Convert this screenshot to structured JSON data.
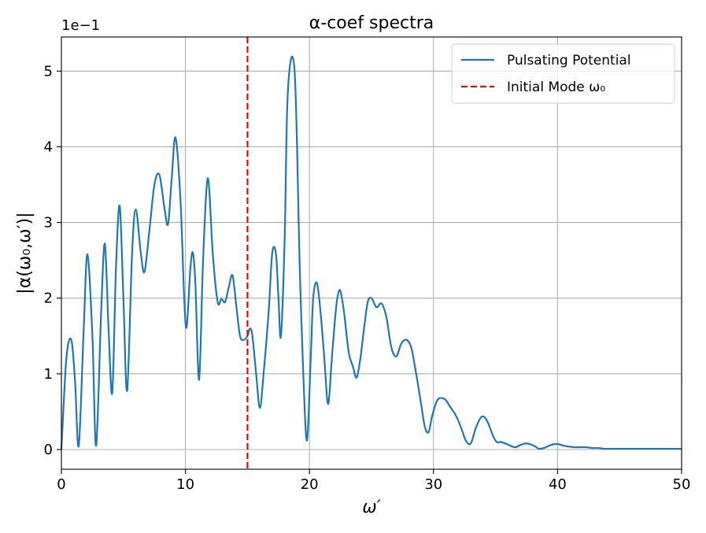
{
  "chart_data": {
    "type": "line",
    "title": "α-coef spectra",
    "xlabel": "ω′",
    "ylabel": "|α(ω₀,ω′)|",
    "offset_text": "1e−1",
    "xlim": [
      0,
      50
    ],
    "ylim": [
      -0.26,
      5.45
    ],
    "xticks": [
      0,
      10,
      20,
      30,
      40,
      50
    ],
    "yticks": [
      0,
      1,
      2,
      3,
      4,
      5
    ],
    "grid": true,
    "legend_position": "top-right",
    "series": [
      {
        "name": "Pulsating Potential",
        "color": "#1f77b4",
        "style": "solid",
        "x": [
          0,
          0.4,
          0.8,
          1.1,
          1.4,
          1.8,
          2.1,
          2.5,
          2.8,
          3.2,
          3.5,
          3.8,
          4.1,
          4.4,
          4.7,
          5.0,
          5.3,
          5.7,
          6.0,
          6.4,
          6.7,
          7.1,
          7.5,
          7.9,
          8.3,
          8.6,
          8.9,
          9.2,
          9.6,
          9.9,
          10.1,
          10.4,
          10.6,
          10.8,
          11.1,
          11.4,
          11.7,
          11.9,
          12.2,
          12.6,
          12.9,
          13.2,
          13.5,
          13.8,
          14.1,
          14.4,
          14.7,
          15.0,
          15.2,
          15.4,
          15.7,
          16.0,
          16.3,
          16.7,
          17.0,
          17.3,
          17.5,
          17.7,
          18.0,
          18.2,
          18.5,
          18.8,
          19.0,
          19.2,
          19.5,
          19.8,
          20.1,
          20.3,
          20.6,
          20.9,
          21.2,
          21.5,
          21.8,
          22.1,
          22.3,
          22.5,
          22.8,
          23.0,
          23.2,
          23.5,
          23.8,
          24.1,
          24.4,
          24.7,
          25.0,
          25.4,
          25.8,
          26.2,
          26.6,
          27.0,
          27.4,
          27.8,
          28.2,
          28.6,
          29.0,
          29.3,
          29.6,
          29.9,
          30.3,
          30.7,
          31.0,
          31.4,
          31.8,
          32.2,
          32.6,
          33.0,
          33.4,
          33.8,
          34.1,
          34.4,
          34.8,
          35.1,
          35.4,
          35.8,
          36.2,
          36.6,
          37.0,
          37.4,
          37.8,
          38.2,
          38.5,
          38.9,
          39.3,
          39.7,
          40.1,
          40.5,
          40.9,
          41.4,
          41.8,
          42.3,
          42.8,
          43.3,
          43.8,
          44.3,
          44.8,
          45.5,
          46.2,
          47.0,
          48.0,
          49.0,
          50.0
        ],
        "y": [
          0,
          1.2,
          1.45,
          0.9,
          0.05,
          1.6,
          2.58,
          1.5,
          0.05,
          1.8,
          2.72,
          1.6,
          0.75,
          2.4,
          3.22,
          2.0,
          0.78,
          2.6,
          3.17,
          2.6,
          2.35,
          2.9,
          3.5,
          3.63,
          3.2,
          2.98,
          3.6,
          4.12,
          3.3,
          2.0,
          1.62,
          2.4,
          2.6,
          2.2,
          0.92,
          2.4,
          3.45,
          3.48,
          2.6,
          1.95,
          1.99,
          1.95,
          2.15,
          2.3,
          1.9,
          1.5,
          1.45,
          1.5,
          1.6,
          1.5,
          1.0,
          0.55,
          1.0,
          1.8,
          2.6,
          2.58,
          2.0,
          1.5,
          2.8,
          4.5,
          5.15,
          5.0,
          4.0,
          2.5,
          1.0,
          0.12,
          1.2,
          2.0,
          2.2,
          1.8,
          1.2,
          0.6,
          1.2,
          1.8,
          2.05,
          2.09,
          1.8,
          1.5,
          1.25,
          1.1,
          0.95,
          1.2,
          1.6,
          1.95,
          2.0,
          1.88,
          1.93,
          1.75,
          1.35,
          1.23,
          1.4,
          1.45,
          1.35,
          1.0,
          0.6,
          0.3,
          0.23,
          0.45,
          0.65,
          0.68,
          0.65,
          0.55,
          0.45,
          0.3,
          0.12,
          0.08,
          0.28,
          0.42,
          0.43,
          0.35,
          0.18,
          0.1,
          0.1,
          0.08,
          0.05,
          0.03,
          0.06,
          0.08,
          0.07,
          0.04,
          0.01,
          0.02,
          0.05,
          0.07,
          0.07,
          0.05,
          0.04,
          0.03,
          0.03,
          0.03,
          0.02,
          0.02,
          0.01,
          0.01,
          0.01,
          0.01,
          0.01,
          0.01,
          0.01,
          0.01,
          0.01
        ]
      },
      {
        "name": "Initial Mode ω₀",
        "color": "#ff0000",
        "style": "dashed",
        "x_const": 15
      }
    ]
  }
}
